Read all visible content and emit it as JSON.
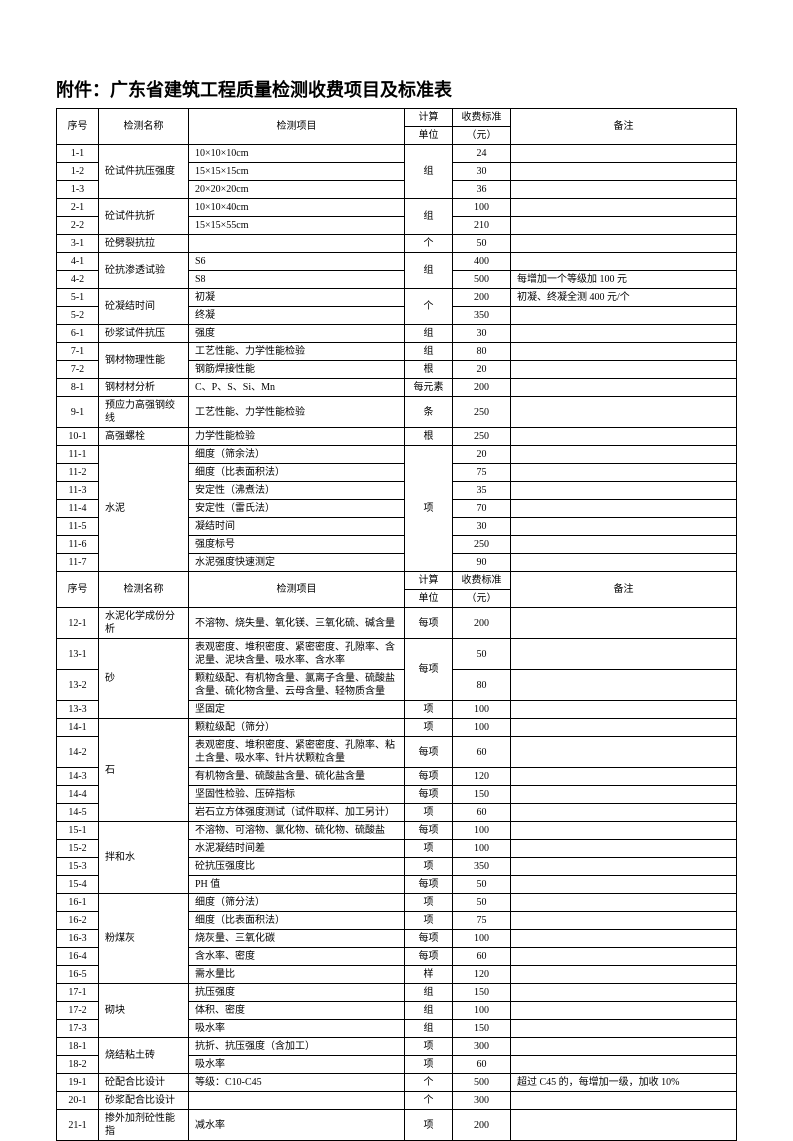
{
  "title": "附件：广东省建筑工程质量检测收费项目及标准表",
  "header1": {
    "c1": "序号",
    "c2": "检测名称",
    "c3": "检测项目",
    "c4a": "计算",
    "c4b": "单位",
    "c5a": "收费标准",
    "c5b": "（元）",
    "c6": "备注"
  },
  "header2": {
    "c1": "序号",
    "c2": "检测名称",
    "c3": "检测项目",
    "c4a": "计算",
    "c4b": "单位",
    "c5a": "收费标准",
    "c5b": "（元）",
    "c6": "备注"
  },
  "r": {
    "r1": {
      "a": "1-1",
      "b": "砼试件抗压强度",
      "c": "10×10×10cm",
      "d": "组",
      "e": "24"
    },
    "r2": {
      "a": "1-2",
      "c": "15×15×15cm",
      "e": "30"
    },
    "r3": {
      "a": "1-3",
      "c": "20×20×20cm",
      "e": "36"
    },
    "r4": {
      "a": "2-1",
      "b": "砼试件抗折",
      "c": "10×10×40cm",
      "d": "组",
      "e": "100"
    },
    "r5": {
      "a": "2-2",
      "c": "15×15×55cm",
      "e": "210"
    },
    "r6": {
      "a": "3-1",
      "b": "砼劈裂抗拉",
      "c": "",
      "d": "个",
      "e": "50"
    },
    "r7": {
      "a": "4-1",
      "b": "砼抗渗透试验",
      "c": "S6",
      "d": "组",
      "e": "400"
    },
    "r8": {
      "a": "4-2",
      "c": "S8",
      "e": "500",
      "f": "每增加一个等级加 100 元"
    },
    "r9": {
      "a": "5-1",
      "b": "砼凝结时间",
      "c": "初凝",
      "d": "个",
      "e": "200",
      "f": "初凝、终凝全测 400 元/个"
    },
    "r10": {
      "a": "5-2",
      "c": "终凝",
      "e": "350"
    },
    "r11": {
      "a": "6-1",
      "b": "砂浆试件抗压",
      "c": "强度",
      "d": "组",
      "e": "30"
    },
    "r12": {
      "a": "7-1",
      "b": "钢材物理性能",
      "c": "工艺性能、力学性能检验",
      "d": "组",
      "e": "80"
    },
    "r13": {
      "a": "7-2",
      "c": "钢筋焊接性能",
      "d": "根",
      "e": "20"
    },
    "r14": {
      "a": "8-1",
      "b": "钢材材分析",
      "c": "C、P、S、Si、Mn",
      "d": "每元素",
      "e": "200"
    },
    "r15": {
      "a": "9-1",
      "b": "预应力高强钢绞线",
      "c": "工艺性能、力学性能检验",
      "d": "条",
      "e": "250"
    },
    "r16": {
      "a": "10-1",
      "b": "高强螺栓",
      "c": "力学性能检验",
      "d": "根",
      "e": "250"
    },
    "r17": {
      "a": "11-1",
      "b": "水泥",
      "c": "细度（筛余法）",
      "d": "项",
      "e": "20"
    },
    "r18": {
      "a": "11-2",
      "c": "细度（比表面积法）",
      "e": "75"
    },
    "r19": {
      "a": "11-3",
      "c": "安定性（沸煮法）",
      "e": "35"
    },
    "r20": {
      "a": "11-4",
      "c": "安定性（雷氏法）",
      "e": "70"
    },
    "r21": {
      "a": "11-5",
      "c": "凝结时间",
      "e": "30"
    },
    "r22": {
      "a": "11-6",
      "c": "强度标号",
      "e": "250"
    },
    "r23": {
      "a": "11-7",
      "c": "水泥强度快速测定",
      "e": "90"
    },
    "r24": {
      "a": "12-1",
      "b": "水泥化学成份分析",
      "c": "不溶物、烧失量、氧化镁、三氧化硫、碱含量",
      "d": "每项",
      "e": "200"
    },
    "r25": {
      "a": "13-1",
      "b": "砂",
      "c": "表观密度、堆积密度、紧密密度、孔隙率、含泥量、泥块含量、吸水率、含水率",
      "d": "每项",
      "e": "50"
    },
    "r26": {
      "a": "13-2",
      "c": "颗粒级配、有机物含量、氯离子含量、硫酸盐含量、硫化物含量、云母含量、轻物质含量",
      "e": "80"
    },
    "r27": {
      "a": "13-3",
      "c": "坚固定",
      "d": "项",
      "e": "100"
    },
    "r28": {
      "a": "14-1",
      "b": "石",
      "c": "颗粒级配（筛分）",
      "d": "项",
      "e": "100"
    },
    "r29": {
      "a": "14-2",
      "c": "表观密度、堆积密度、紧密密度、孔隙率、粘土含量、吸水率、针片状颗粒含量",
      "d": "每项",
      "e": "60"
    },
    "r30": {
      "a": "14-3",
      "c": "有机物含量、硫酸盐含量、硫化盐含量",
      "d": "每项",
      "e": "120"
    },
    "r31": {
      "a": "14-4",
      "c": "坚固性检验、压碎指标",
      "d": "每项",
      "e": "150"
    },
    "r32": {
      "a": "14-5",
      "c": "岩石立方体强度测试（试件取样、加工另计）",
      "d": "项",
      "e": "60"
    },
    "r33": {
      "a": "15-1",
      "b": "拌和水",
      "c": "不溶物、可溶物、氯化物、硫化物、硫酸盐",
      "d": "每项",
      "e": "100"
    },
    "r34": {
      "a": "15-2",
      "c": "水泥凝结时间差",
      "d": "项",
      "e": "100"
    },
    "r35": {
      "a": "15-3",
      "c": "砼抗压强度比",
      "d": "项",
      "e": "350"
    },
    "r36": {
      "a": "15-4",
      "c": "PH 值",
      "d": "每项",
      "e": "50"
    },
    "r37": {
      "a": "16-1",
      "b": "粉煤灰",
      "c": "细度（筛分法）",
      "d": "项",
      "e": "50"
    },
    "r38": {
      "a": "16-2",
      "c": "细度（比表面积法）",
      "d": "项",
      "e": "75"
    },
    "r39": {
      "a": "16-3",
      "c": "烧灰量、三氧化碳",
      "d": "每项",
      "e": "100"
    },
    "r40": {
      "a": "16-4",
      "c": "含水率、密度",
      "d": "每项",
      "e": "60"
    },
    "r41": {
      "a": "16-5",
      "c": "需水量比",
      "d": "样",
      "e": "120"
    },
    "r42": {
      "a": "17-1",
      "b": "砌块",
      "c": "抗压强度",
      "d": "组",
      "e": "150"
    },
    "r43": {
      "a": "17-2",
      "c": "体积、密度",
      "d": "组",
      "e": "100"
    },
    "r44": {
      "a": "17-3",
      "c": "吸水率",
      "d": "组",
      "e": "150"
    },
    "r45": {
      "a": "18-1",
      "b": "烧结粘土砖",
      "c": "抗折、抗压强度（含加工）",
      "d": "项",
      "e": "300"
    },
    "r46": {
      "a": "18-2",
      "c": "吸水率",
      "d": "项",
      "e": "60"
    },
    "r47": {
      "a": "19-1",
      "b": "砼配合比设计",
      "c": "等级：C10-C45",
      "d": "个",
      "e": "500",
      "f": "超过 C45 的，每增加一级，加收 10%"
    },
    "r48": {
      "a": "20-1",
      "b": "砂浆配合比设计",
      "c": "",
      "d": "个",
      "e": "300"
    },
    "r49": {
      "a": "21-1",
      "b": "掺外加剂砼性能指",
      "c": "减水率",
      "d": "项",
      "e": "200"
    }
  }
}
